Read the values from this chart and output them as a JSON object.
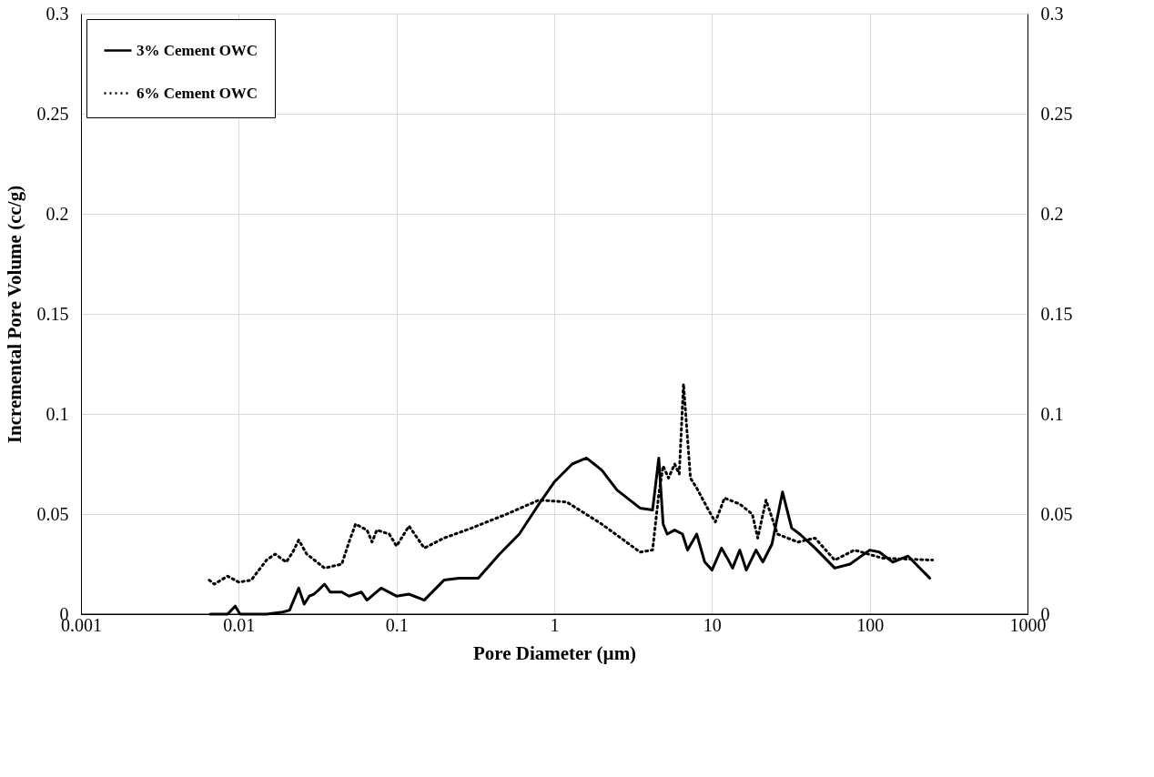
{
  "chart_data": {
    "type": "line",
    "xlabel": "Pore Diameter (µm)",
    "ylabel": "Incremental Pore Volume (cc/g)",
    "log": "x",
    "xlim": [
      0.001,
      1000
    ],
    "xticks": [
      0.001,
      0.01,
      0.1,
      1,
      10,
      100,
      1000
    ],
    "ylim": [
      0,
      0.3
    ],
    "yticks": [
      0,
      0.05,
      0.1,
      0.15,
      0.2,
      0.25,
      0.3
    ],
    "y2lim": [
      0,
      0.3
    ],
    "y2ticks": [
      0,
      0.05,
      0.1,
      0.15,
      0.2,
      0.25,
      0.3
    ],
    "grid": true,
    "legend": "top left",
    "marker": "none",
    "series": [
      {
        "name": "3% Cement OWC",
        "color": "#000000",
        "line_style": "solid",
        "x": [
          0.0066,
          0.0085,
          0.0095,
          0.0102,
          0.015,
          0.019,
          0.021,
          0.024,
          0.026,
          0.028,
          0.03,
          0.032,
          0.035,
          0.038,
          0.045,
          0.05,
          0.06,
          0.065,
          0.08,
          0.1,
          0.12,
          0.15,
          0.2,
          0.25,
          0.33,
          0.45,
          0.6,
          0.8,
          1.0,
          1.3,
          1.6,
          2.0,
          2.5,
          3.5,
          4.2,
          4.6,
          4.9,
          5.2,
          5.8,
          6.5,
          7.0,
          8.0,
          9.0,
          10,
          11.5,
          12.5,
          13.5,
          15,
          16.5,
          19,
          21,
          24,
          28,
          32,
          36,
          45,
          60,
          75,
          100,
          115,
          140,
          175,
          240
        ],
        "values": [
          0,
          0,
          0.004,
          0,
          0,
          0.001,
          0.002,
          0.013,
          0.005,
          0.009,
          0.01,
          0.012,
          0.015,
          0.011,
          0.011,
          0.009,
          0.011,
          0.007,
          0.013,
          0.009,
          0.01,
          0.007,
          0.017,
          0.018,
          0.018,
          0.03,
          0.04,
          0.055,
          0.066,
          0.075,
          0.078,
          0.072,
          0.062,
          0.053,
          0.052,
          0.078,
          0.045,
          0.04,
          0.042,
          0.04,
          0.032,
          0.04,
          0.026,
          0.022,
          0.033,
          0.028,
          0.023,
          0.032,
          0.022,
          0.032,
          0.026,
          0.035,
          0.061,
          0.043,
          0.04,
          0.033,
          0.023,
          0.025,
          0.032,
          0.031,
          0.026,
          0.029,
          0.018
        ]
      },
      {
        "name": "6% Cement OWC",
        "color": "#000000",
        "line_style": "dotted",
        "x": [
          0.0065,
          0.007,
          0.0085,
          0.01,
          0.012,
          0.015,
          0.017,
          0.02,
          0.022,
          0.024,
          0.027,
          0.035,
          0.045,
          0.05,
          0.055,
          0.065,
          0.07,
          0.075,
          0.09,
          0.1,
          0.12,
          0.15,
          0.2,
          0.3,
          0.5,
          0.8,
          1.2,
          2,
          3.5,
          4.2,
          4.6,
          4.9,
          5.3,
          5.8,
          6.2,
          6.6,
          7.3,
          8,
          9.5,
          10.5,
          12,
          15,
          18,
          19.5,
          22,
          26,
          35,
          45,
          60,
          80,
          120,
          250
        ],
        "values": [
          0.017,
          0.015,
          0.019,
          0.016,
          0.017,
          0.027,
          0.03,
          0.026,
          0.031,
          0.037,
          0.03,
          0.023,
          0.025,
          0.036,
          0.045,
          0.042,
          0.036,
          0.042,
          0.04,
          0.034,
          0.044,
          0.033,
          0.038,
          0.043,
          0.05,
          0.057,
          0.056,
          0.045,
          0.031,
          0.032,
          0.06,
          0.074,
          0.068,
          0.075,
          0.07,
          0.115,
          0.068,
          0.063,
          0.052,
          0.046,
          0.058,
          0.055,
          0.05,
          0.038,
          0.057,
          0.04,
          0.036,
          0.038,
          0.027,
          0.032,
          0.028,
          0.027
        ]
      }
    ]
  }
}
